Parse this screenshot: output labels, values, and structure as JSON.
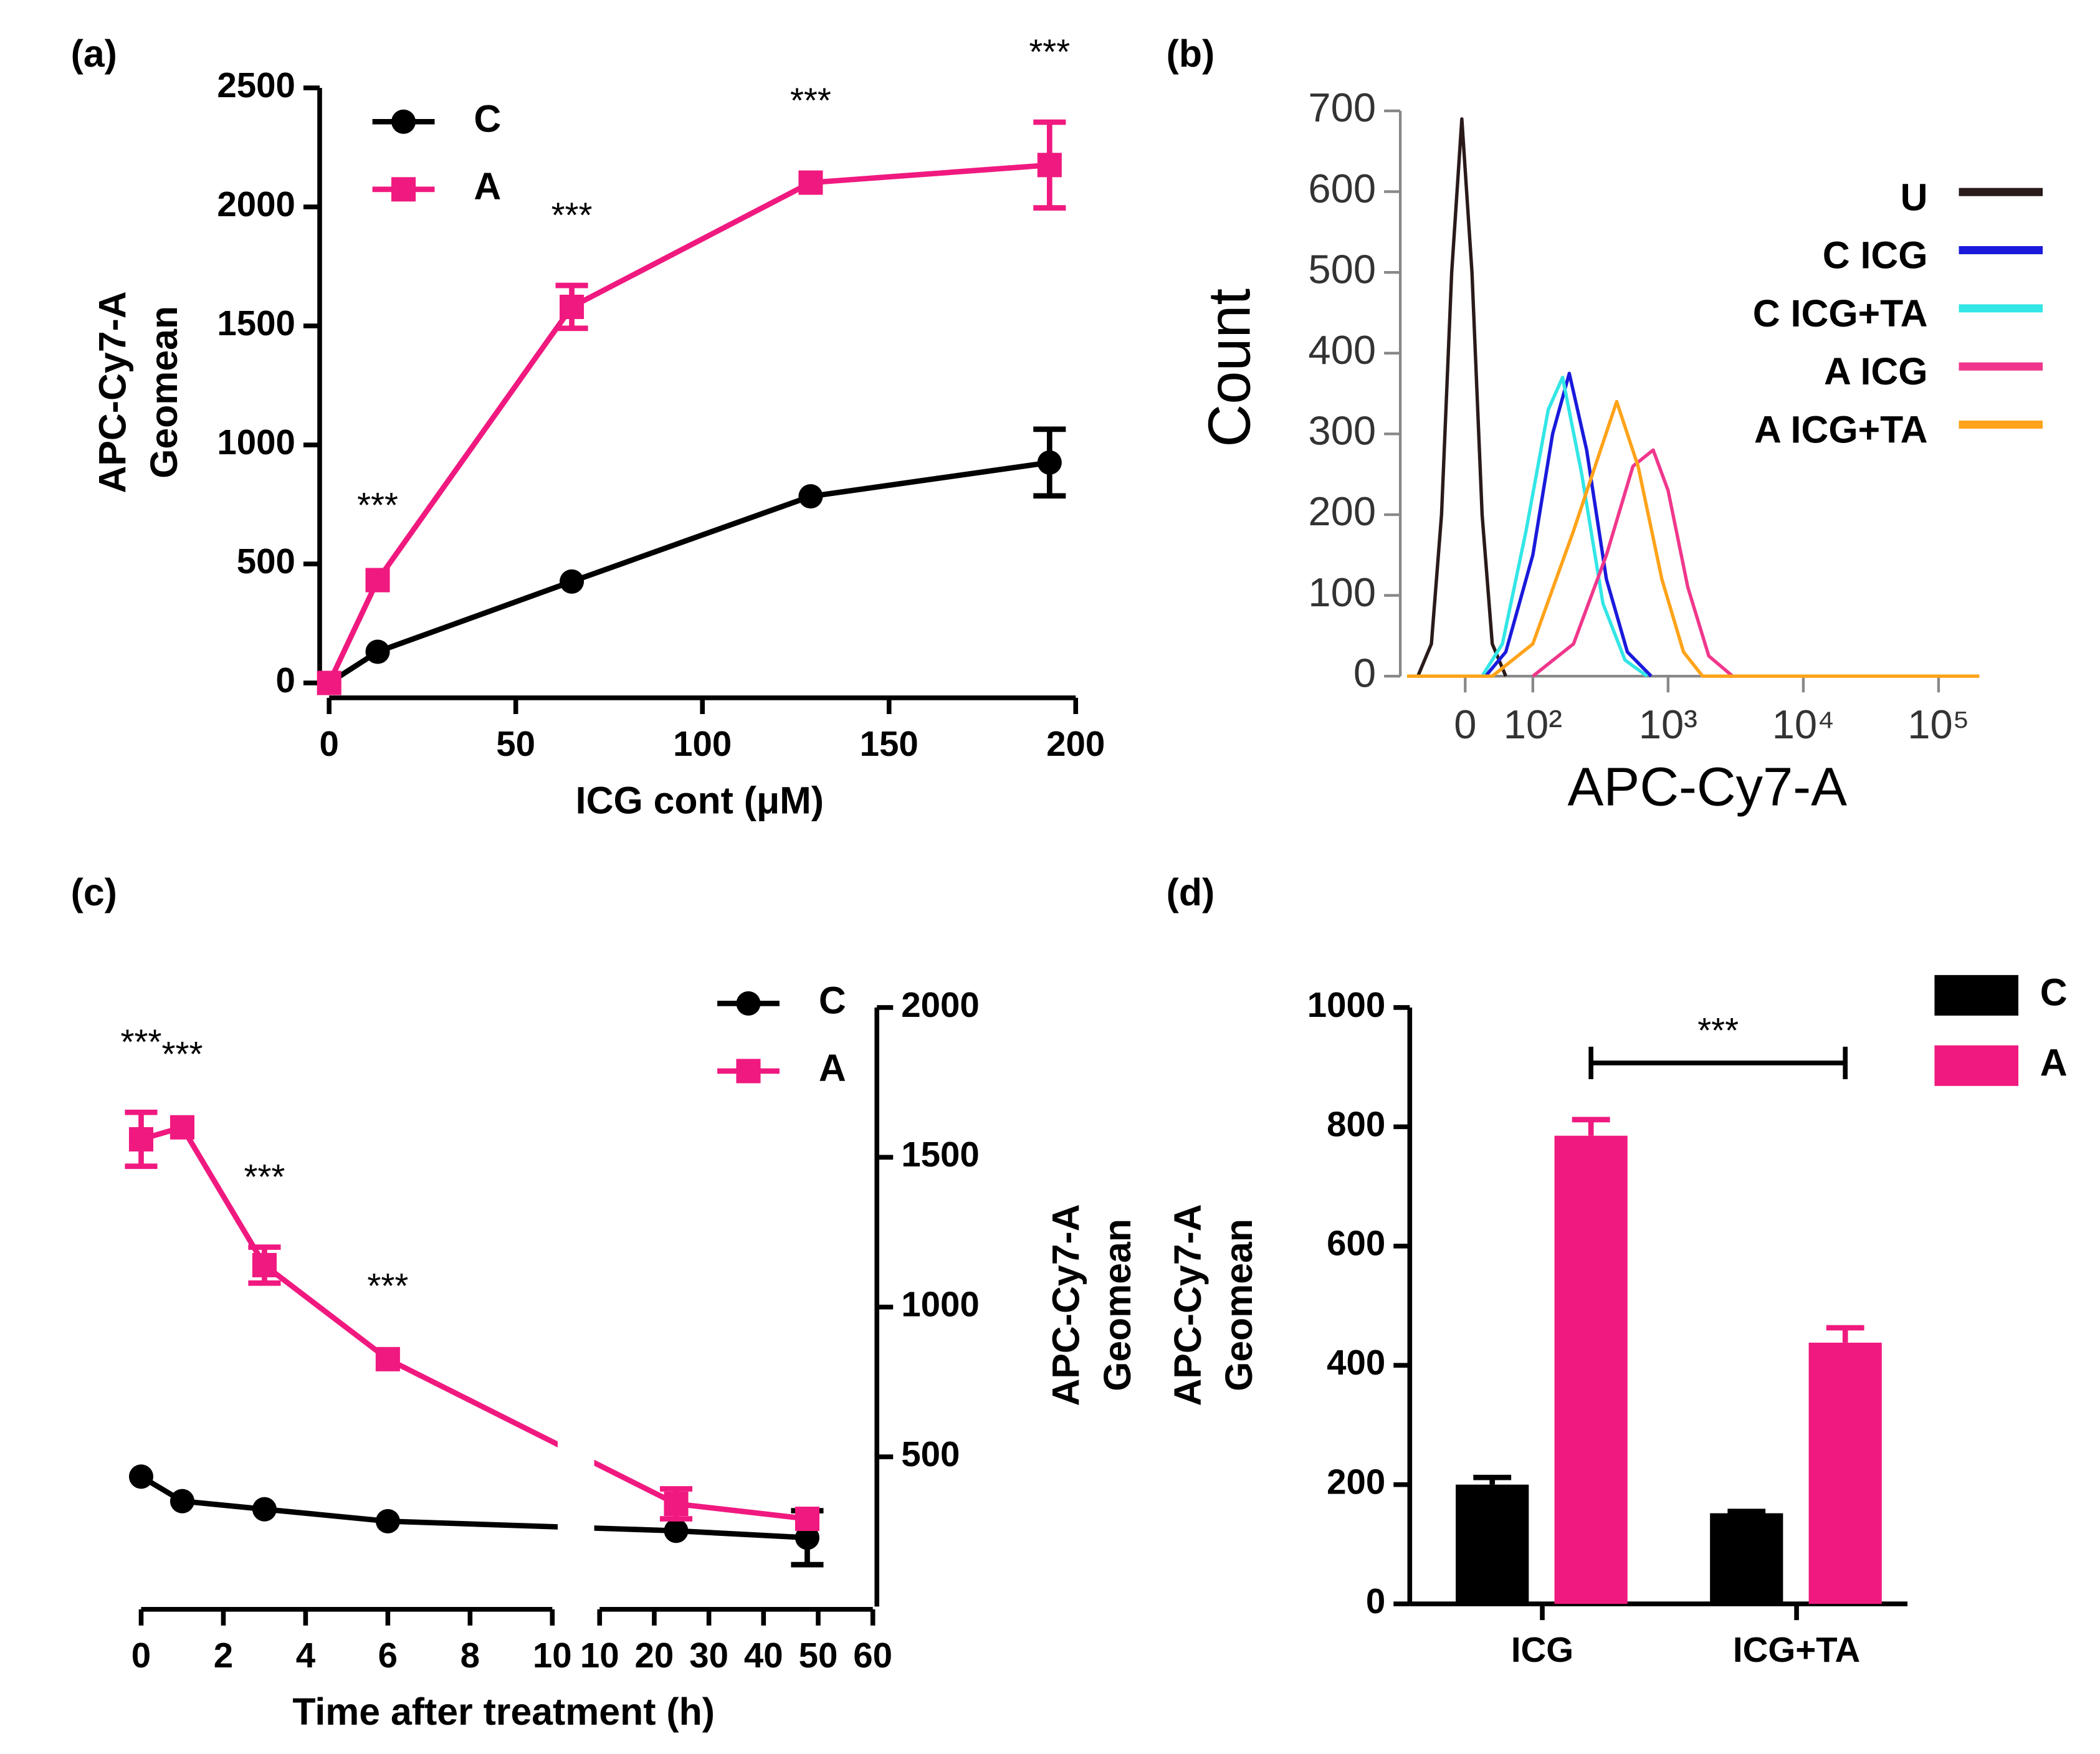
{
  "chart_data": [
    {
      "panel": "(a)",
      "type": "line",
      "xlabel": "ICG cont (μM)",
      "ylabel": [
        "APC-Cy7-A",
        "Geomean"
      ],
      "x": [
        0,
        13,
        65,
        129,
        193
      ],
      "xlim": [
        0,
        200
      ],
      "xticks": [
        0,
        50,
        100,
        150,
        200
      ],
      "ylim": [
        0,
        2500
      ],
      "yticks": [
        0,
        500,
        1000,
        1500,
        2000,
        2500
      ],
      "legend": "upper left",
      "series": [
        {
          "name": "C",
          "color": "#000000",
          "marker": "circle",
          "values": [
            0,
            131,
            426,
            784,
            926
          ],
          "errors": [
            0,
            10,
            15,
            20,
            140
          ]
        },
        {
          "name": "A",
          "color": "#f0197f",
          "marker": "square",
          "values": [
            0,
            432,
            1580,
            2102,
            2176
          ],
          "errors": [
            0,
            20,
            90,
            50,
            180
          ]
        }
      ],
      "annotations": [
        "***",
        "***",
        "***",
        "***"
      ]
    },
    {
      "panel": "(b)",
      "type": "histogram-overlay",
      "xlabel": "APC-Cy7-A",
      "ylabel": "Count",
      "xscale": "biexponential",
      "xlim": [
        -86,
        200000
      ],
      "xticks": [
        0,
        {
          "value": 100,
          "label": "10²"
        },
        {
          "value": 1000,
          "label": "10³"
        },
        {
          "value": 10000,
          "label": "10⁴"
        },
        {
          "value": 100000,
          "label": "10⁵"
        }
      ],
      "ylim": [
        0,
        700
      ],
      "yticks": [
        0,
        100,
        200,
        300,
        400,
        500,
        600,
        700
      ],
      "legend": "upper right",
      "series": [
        {
          "name": "U",
          "color": "#2a1a1a",
          "x": [
            -70,
            -50,
            -35,
            -20,
            -5,
            10,
            25,
            40,
            60
          ],
          "values": [
            0,
            40,
            200,
            500,
            690,
            500,
            200,
            40,
            0
          ]
        },
        {
          "name": "C ICG",
          "color": "#1a1adc",
          "x": [
            30,
            60,
            100,
            140,
            186,
            250,
            350,
            500,
            750
          ],
          "values": [
            0,
            30,
            150,
            300,
            375,
            280,
            120,
            30,
            0
          ]
        },
        {
          "name": "C ICG+TA",
          "color": "#33e6e6",
          "x": [
            25,
            55,
            90,
            130,
            166,
            230,
            330,
            480,
            700
          ],
          "values": [
            0,
            40,
            180,
            330,
            370,
            250,
            90,
            20,
            0
          ]
        },
        {
          "name": "A ICG",
          "color": "#f0378c",
          "x": [
            100,
            200,
            350,
            550,
            776,
            1000,
            1400,
            2000,
            3000
          ],
          "values": [
            0,
            40,
            150,
            260,
            280,
            230,
            110,
            25,
            0
          ]
        },
        {
          "name": "A ICG+TA",
          "color": "#ffa31a",
          "x": [
            -86,
            40,
            100,
            200,
            417,
            600,
            900,
            1300,
            1800,
            200000
          ],
          "values": [
            0,
            0,
            40,
            180,
            340,
            260,
            120,
            30,
            0,
            0
          ]
        }
      ]
    },
    {
      "panel": "(c)",
      "type": "line",
      "xlabel": "Time after treatment (h)",
      "ylabel": [
        "APC-Cy7-A",
        "Geomean"
      ],
      "x": [
        0,
        1,
        3,
        6,
        24,
        48
      ],
      "xlim": [
        [
          0,
          10
        ],
        [
          10,
          60
        ]
      ],
      "xticks": [
        [
          0,
          2,
          4,
          6,
          8,
          10
        ],
        [
          10,
          20,
          30,
          40,
          50,
          60
        ]
      ],
      "ylim": [
        0,
        2000
      ],
      "yticks": [
        500,
        1000,
        1500,
        2000
      ],
      "legend": "upper right",
      "series": [
        {
          "name": "C",
          "color": "#000000",
          "marker": "circle",
          "values": [
            434,
            352,
            325,
            285,
            253,
            230
          ],
          "errors": [
            10,
            10,
            10,
            10,
            10,
            90
          ]
        },
        {
          "name": "A",
          "color": "#f0197f",
          "marker": "square",
          "values": [
            1560,
            1600,
            1140,
            826,
            343,
            293
          ],
          "errors": [
            90,
            10,
            60,
            10,
            50,
            40
          ]
        }
      ],
      "annotations": [
        "***",
        "***",
        "***",
        "***"
      ]
    },
    {
      "panel": "(d)",
      "type": "bar",
      "ylabel": [
        "APC-Cy7-A",
        "Geomean"
      ],
      "categories": [
        "ICG",
        "ICG+TA"
      ],
      "ylim": [
        0,
        1000
      ],
      "yticks": [
        0,
        200,
        400,
        600,
        800,
        1000
      ],
      "legend": "upper right",
      "series": [
        {
          "name": "C",
          "color": "#000000",
          "values": [
            200,
            152
          ],
          "errors": [
            12,
            3
          ]
        },
        {
          "name": "A",
          "color": "#f0197f",
          "values": [
            785,
            438
          ],
          "errors": [
            27,
            25
          ]
        }
      ],
      "annotations": [
        "***"
      ]
    }
  ]
}
